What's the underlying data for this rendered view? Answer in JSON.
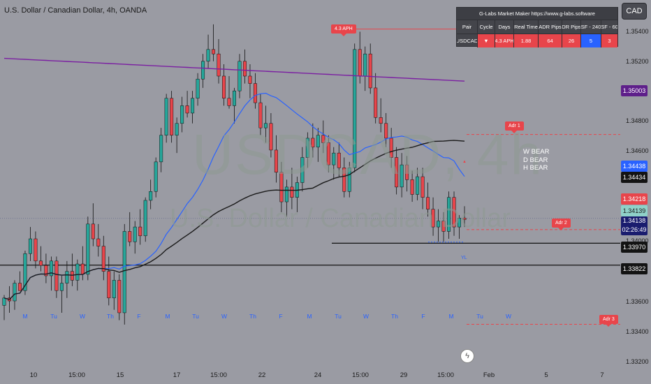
{
  "header": {
    "title": "U.S. Dollar / Canadian Dollar, 4h, OANDA"
  },
  "watermark": {
    "ticker": "USDCAD, 4h",
    "name": "U.S. Dollar / Canadian Dollar"
  },
  "currency_button": "CAD",
  "market_maker": {
    "title": "G-Labs Market Maker https://www.g-labs.software",
    "headers": [
      "Pair",
      "Cycle",
      "Days",
      "Real Time",
      "ADR Pips",
      "DR Pips",
      "SF - 240",
      "SF - 60"
    ],
    "row": [
      "USDCAD",
      "▼",
      "4.3 APH",
      "1.88",
      "64",
      "26",
      "5",
      "3"
    ]
  },
  "annotations": {
    "aph": "4.3 APH",
    "adr1": "Adr 1",
    "adr2": "Adr 2",
    "adr3": "Adr 3",
    "yl": "YL",
    "bias": [
      "W BEAR",
      "D BEAR",
      "H BEAR"
    ]
  },
  "y_axis": {
    "ticks": [
      "1.35400",
      "1.35200",
      "1.34800",
      "1.34600",
      "1.34000",
      "1.33600",
      "1.33400",
      "1.33200"
    ],
    "tags": {
      "purple": "1.35003",
      "blue": "1.34438",
      "black_ma": "1.34434",
      "red": "1.34218",
      "teal": "1.34139",
      "current": "1.34138",
      "countdown": "02:26:49",
      "line1": "1.33970",
      "line2": "1.33822"
    }
  },
  "x_axis": {
    "labels": [
      "10",
      "15:00",
      "15",
      "17",
      "15:00",
      "22",
      "24",
      "15:00",
      "29",
      "15:00",
      "Feb",
      "5",
      "7"
    ]
  },
  "days": [
    "M",
    "Tu",
    "W",
    "Th",
    "F",
    "M",
    "Tu",
    "W",
    "Th",
    "F",
    "M",
    "Tu",
    "W",
    "Th",
    "F",
    "M",
    "Tu",
    "W"
  ],
  "colors": {
    "up": "#26a69a",
    "down": "#e8454b",
    "ma_blue": "#2962ff",
    "ma_black": "#1a1a1a",
    "ma_purple": "#7b1fa2",
    "accent_red": "#e8454b"
  },
  "chart_data": {
    "type": "candlestick",
    "title": "U.S. Dollar / Canadian Dollar, 4h, OANDA",
    "ylim": [
      1.3316,
      1.3552
    ],
    "candles": [
      [
        1.3355,
        1.3362,
        1.3345,
        1.336
      ],
      [
        1.336,
        1.3368,
        1.335,
        1.3358
      ],
      [
        1.3358,
        1.3372,
        1.3352,
        1.337
      ],
      [
        1.337,
        1.3378,
        1.3365,
        1.3365
      ],
      [
        1.3365,
        1.3392,
        1.3362,
        1.339
      ],
      [
        1.339,
        1.3408,
        1.3385,
        1.34
      ],
      [
        1.34,
        1.3405,
        1.338,
        1.3385
      ],
      [
        1.3385,
        1.3395,
        1.3378,
        1.3382
      ],
      [
        1.3382,
        1.339,
        1.337,
        1.3375
      ],
      [
        1.3375,
        1.3388,
        1.3365,
        1.3385
      ],
      [
        1.3385,
        1.3388,
        1.336,
        1.3365
      ],
      [
        1.3365,
        1.3375,
        1.335,
        1.337
      ],
      [
        1.337,
        1.3385,
        1.336,
        1.3378
      ],
      [
        1.3378,
        1.339,
        1.3368,
        1.3372
      ],
      [
        1.3372,
        1.3386,
        1.3365,
        1.3383
      ],
      [
        1.3383,
        1.3395,
        1.3372,
        1.3376
      ],
      [
        1.3376,
        1.3415,
        1.3372,
        1.341
      ],
      [
        1.341,
        1.3424,
        1.3395,
        1.34
      ],
      [
        1.34,
        1.341,
        1.3388,
        1.3395
      ],
      [
        1.3395,
        1.3402,
        1.3372,
        1.3378
      ],
      [
        1.3378,
        1.3388,
        1.3355,
        1.336
      ],
      [
        1.336,
        1.3378,
        1.3352,
        1.3372
      ],
      [
        1.3372,
        1.3376,
        1.3345,
        1.335
      ],
      [
        1.335,
        1.341,
        1.3342,
        1.3405
      ],
      [
        1.3405,
        1.3418,
        1.3395,
        1.3398
      ],
      [
        1.3398,
        1.3412,
        1.339,
        1.3408
      ],
      [
        1.3408,
        1.342,
        1.3396,
        1.3402
      ],
      [
        1.3402,
        1.3428,
        1.3398,
        1.3426
      ],
      [
        1.3426,
        1.344,
        1.342,
        1.3432
      ],
      [
        1.3432,
        1.3455,
        1.3428,
        1.3452
      ],
      [
        1.3452,
        1.3475,
        1.3445,
        1.347
      ],
      [
        1.347,
        1.3498,
        1.3465,
        1.3495
      ],
      [
        1.3495,
        1.35,
        1.3465,
        1.347
      ],
      [
        1.347,
        1.3482,
        1.3458,
        1.3478
      ],
      [
        1.3478,
        1.3496,
        1.3472,
        1.349
      ],
      [
        1.349,
        1.35,
        1.3482,
        1.3485
      ],
      [
        1.3485,
        1.35,
        1.3478,
        1.3495
      ],
      [
        1.3495,
        1.3512,
        1.349,
        1.3508
      ],
      [
        1.3508,
        1.3525,
        1.3502,
        1.352
      ],
      [
        1.352,
        1.3538,
        1.3515,
        1.3528
      ],
      [
        1.3528,
        1.3545,
        1.352,
        1.3525
      ],
      [
        1.3525,
        1.3535,
        1.3505,
        1.351
      ],
      [
        1.351,
        1.3518,
        1.349,
        1.3495
      ],
      [
        1.3495,
        1.351,
        1.3488,
        1.349
      ],
      [
        1.349,
        1.3502,
        1.3478,
        1.35
      ],
      [
        1.35,
        1.3525,
        1.3495,
        1.352
      ],
      [
        1.352,
        1.3528,
        1.3505,
        1.351
      ],
      [
        1.351,
        1.3518,
        1.3495,
        1.3505
      ],
      [
        1.3505,
        1.3512,
        1.3488,
        1.3492
      ],
      [
        1.3492,
        1.3498,
        1.347,
        1.3475
      ],
      [
        1.3475,
        1.349,
        1.3465,
        1.3478
      ],
      [
        1.3478,
        1.3485,
        1.3455,
        1.346
      ],
      [
        1.346,
        1.347,
        1.3438,
        1.3445
      ],
      [
        1.3445,
        1.3452,
        1.3418,
        1.3425
      ],
      [
        1.3425,
        1.344,
        1.3415,
        1.3435
      ],
      [
        1.3435,
        1.3448,
        1.342,
        1.3428
      ],
      [
        1.3428,
        1.3442,
        1.3418,
        1.3438
      ],
      [
        1.3438,
        1.3462,
        1.3432,
        1.3455
      ],
      [
        1.3455,
        1.3472,
        1.3448,
        1.3468
      ],
      [
        1.3468,
        1.3478,
        1.3455,
        1.3462
      ],
      [
        1.3462,
        1.3475,
        1.3452,
        1.347
      ],
      [
        1.347,
        1.348,
        1.3458,
        1.3465
      ],
      [
        1.3465,
        1.347,
        1.3445,
        1.345
      ],
      [
        1.345,
        1.3462,
        1.344,
        1.3458
      ],
      [
        1.3458,
        1.3465,
        1.3442,
        1.3448
      ],
      [
        1.3448,
        1.3455,
        1.3428,
        1.3432
      ],
      [
        1.3432,
        1.3452,
        1.3428,
        1.3448
      ],
      [
        1.3448,
        1.3532,
        1.3445,
        1.3528
      ],
      [
        1.3528,
        1.354,
        1.3505,
        1.351
      ],
      [
        1.351,
        1.353,
        1.35,
        1.3525
      ],
      [
        1.3525,
        1.3532,
        1.3498,
        1.3502
      ],
      [
        1.3502,
        1.3512,
        1.3478,
        1.3482
      ],
      [
        1.3482,
        1.3495,
        1.3472,
        1.3478
      ],
      [
        1.3478,
        1.3485,
        1.3462,
        1.3468
      ],
      [
        1.3468,
        1.3475,
        1.3448,
        1.3455
      ],
      [
        1.3455,
        1.3462,
        1.343,
        1.3435
      ],
      [
        1.3435,
        1.3458,
        1.3428,
        1.345
      ],
      [
        1.345,
        1.3456,
        1.3432,
        1.344
      ],
      [
        1.344,
        1.3446,
        1.3425,
        1.343
      ],
      [
        1.343,
        1.3448,
        1.3426,
        1.3442
      ],
      [
        1.3442,
        1.3448,
        1.342,
        1.3428
      ],
      [
        1.3428,
        1.3438,
        1.3415,
        1.342
      ],
      [
        1.342,
        1.3428,
        1.3402,
        1.3408
      ],
      [
        1.3408,
        1.342,
        1.3398,
        1.3412
      ],
      [
        1.3412,
        1.3418,
        1.3398,
        1.3405
      ],
      [
        1.3405,
        1.3432,
        1.34,
        1.3428
      ],
      [
        1.3428,
        1.3432,
        1.3402,
        1.3408
      ],
      [
        1.3408,
        1.3416,
        1.34,
        1.3414
      ],
      [
        1.3414,
        1.3422,
        1.3408,
        1.3413
      ]
    ]
  }
}
